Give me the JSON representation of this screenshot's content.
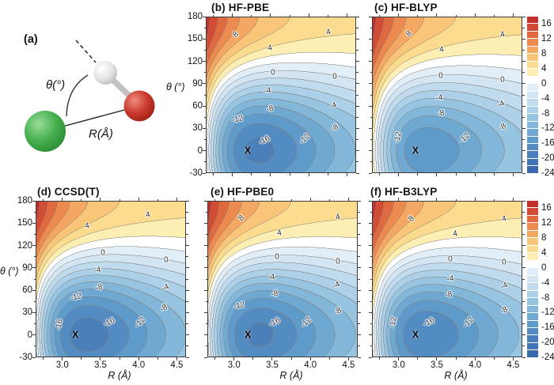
{
  "figure": {
    "background": "#ffffff",
    "panel_a": {
      "label": "(a)",
      "theta_label": "θ(°)",
      "r_label": "R(Å)",
      "atoms": [
        {
          "name": "green-atom",
          "color": "#44b04e"
        },
        {
          "name": "red-atom",
          "color": "#c43a2d"
        },
        {
          "name": "white-atom",
          "color": "#e6e6e6"
        }
      ]
    }
  },
  "chart_data": {
    "type": "contour",
    "x_label": "R (Å)",
    "y_label": "θ (°)",
    "x_range": [
      2.65,
      4.62
    ],
    "y_range": [
      -30,
      180
    ],
    "x_ticks": [
      {
        "v": 3.0,
        "t": "3.0"
      },
      {
        "v": 3.5,
        "t": "3.5"
      },
      {
        "v": 4.0,
        "t": "4.0"
      },
      {
        "v": 4.5,
        "t": "4.5"
      }
    ],
    "x_minor_ticks": [
      2.75,
      3.25,
      3.75,
      4.25
    ],
    "y_ticks": [
      {
        "v": 180,
        "t": "180"
      },
      {
        "v": 150,
        "t": "150"
      },
      {
        "v": 120,
        "t": "120"
      },
      {
        "v": 90,
        "t": "90"
      },
      {
        "v": 60,
        "t": "60"
      },
      {
        "v": 30,
        "t": "30"
      },
      {
        "v": 0,
        "t": "0"
      },
      {
        "v": -30,
        "t": "-30"
      }
    ],
    "y_minor_ticks": [
      165,
      135,
      105,
      75,
      45,
      15,
      -15
    ],
    "contour_interval": 2,
    "labeled_levels": [
      8,
      4,
      0,
      -4,
      -8,
      -12,
      -16
    ],
    "colorbar": {
      "vmin": -24,
      "vmax": 18,
      "ticks": [
        "16",
        "12",
        "8",
        "4",
        "0",
        "-4",
        "-8",
        "-12",
        "-16",
        "-20",
        "-24"
      ],
      "tick_values": [
        16,
        12,
        8,
        4,
        0,
        -4,
        -8,
        -12,
        -16,
        -20,
        -24
      ],
      "band_colors": [
        "#3b68aa",
        "#4273b2",
        "#4a7fba",
        "#538cc2",
        "#5f9bca",
        "#6fa9d2",
        "#82b7da",
        "#97c4e1",
        "#abd0e8",
        "#c0dbee",
        "#d3e5f2",
        "#e2eef7",
        "#ffffff",
        "#fdeeb3",
        "#fbdc8e",
        "#f9c578",
        "#f4a763",
        "#ec8a4f",
        "#e06a40",
        "#d24b35",
        "#c4302b"
      ]
    },
    "panels": [
      {
        "id": "b",
        "title": "(b) HF-PBE",
        "min_energy": -18.2,
        "r_min": 3.2,
        "theta_min": 0,
        "marker": "X",
        "y_tick_labels": true,
        "x_tick_labels": false,
        "clabels": [
          {
            "t": "8",
            "r": 3.04,
            "th": 156,
            "rot": -42
          },
          {
            "t": "4",
            "r": 3.49,
            "th": 138,
            "rot": -8
          },
          {
            "t": "4",
            "r": 4.26,
            "th": 159,
            "rot": -16
          },
          {
            "t": "0",
            "r": 3.53,
            "th": 105,
            "rot": -5
          },
          {
            "t": "0",
            "r": 4.34,
            "th": 99,
            "rot": -6
          },
          {
            "t": "-4",
            "r": 3.46,
            "th": 80,
            "rot": -8
          },
          {
            "t": "-4",
            "r": 4.32,
            "th": 60,
            "rot": -24
          },
          {
            "t": "-8",
            "r": 3.49,
            "th": 56,
            "rot": -10
          },
          {
            "t": "-8",
            "r": 4.34,
            "th": 30,
            "rot": -32
          },
          {
            "t": "-12",
            "r": 3.06,
            "th": 42,
            "rot": -12
          },
          {
            "t": "-12",
            "r": 3.95,
            "th": 16,
            "rot": -44
          },
          {
            "t": "-16",
            "r": 3.42,
            "th": 14,
            "rot": -26
          }
        ]
      },
      {
        "id": "c",
        "title": "(c) HF-BLYP",
        "min_energy": -15.2,
        "r_min": 3.22,
        "theta_min": 0,
        "marker": "X",
        "y_tick_labels": false,
        "x_tick_labels": false,
        "clabels": [
          {
            "t": "8",
            "r": 3.14,
            "th": 157,
            "rot": -42
          },
          {
            "t": "4",
            "r": 3.56,
            "th": 135,
            "rot": -8
          },
          {
            "t": "4",
            "r": 4.36,
            "th": 156,
            "rot": -16
          },
          {
            "t": "0",
            "r": 3.55,
            "th": 100,
            "rot": -5
          },
          {
            "t": "0",
            "r": 4.36,
            "th": 95,
            "rot": -6
          },
          {
            "t": "-4",
            "r": 3.53,
            "th": 71,
            "rot": -8
          },
          {
            "t": "-4",
            "r": 4.34,
            "th": 62,
            "rot": -24
          },
          {
            "t": "-8",
            "r": 3.55,
            "th": 50,
            "rot": -10
          },
          {
            "t": "-8",
            "r": 4.36,
            "th": 31,
            "rot": -32
          },
          {
            "t": "-12",
            "r": 2.99,
            "th": 18,
            "rot": -80
          },
          {
            "t": "-12",
            "r": 3.86,
            "th": 17,
            "rot": -44
          }
        ]
      },
      {
        "id": "d",
        "title": "(d) CCSD(T)",
        "min_energy": -18.8,
        "r_min": 3.17,
        "theta_min": 0,
        "marker": "X",
        "y_tick_labels": true,
        "x_tick_labels": true,
        "clabels": [
          {
            "t": "4",
            "r": 3.32,
            "th": 146,
            "rot": -8
          },
          {
            "t": "4",
            "r": 4.12,
            "th": 161,
            "rot": -14
          },
          {
            "t": "0",
            "r": 3.53,
            "th": 110,
            "rot": -5
          },
          {
            "t": "0",
            "r": 4.36,
            "th": 100,
            "rot": -6
          },
          {
            "t": "-4",
            "r": 3.46,
            "th": 87,
            "rot": -8
          },
          {
            "t": "-4",
            "r": 4.35,
            "th": 63,
            "rot": -24
          },
          {
            "t": "-8",
            "r": 3.48,
            "th": 63,
            "rot": -10
          },
          {
            "t": "-8",
            "r": 4.33,
            "th": 36,
            "rot": -32
          },
          {
            "t": "-12",
            "r": 3.18,
            "th": 51,
            "rot": -12
          },
          {
            "t": "-12",
            "r": 4.02,
            "th": 17,
            "rot": -46
          },
          {
            "t": "-16",
            "r": 2.96,
            "th": 13,
            "rot": -80
          },
          {
            "t": "-16",
            "r": 3.61,
            "th": 17,
            "rot": -24
          }
        ]
      },
      {
        "id": "e",
        "title": "(e) HF-PBE0",
        "min_energy": -18.2,
        "r_min": 3.18,
        "theta_min": 0,
        "marker": "X",
        "y_tick_labels": false,
        "x_tick_labels": true,
        "clabels": [
          {
            "t": "8",
            "r": 3.1,
            "th": 157,
            "rot": -42
          },
          {
            "t": "4",
            "r": 3.59,
            "th": 137,
            "rot": -8
          },
          {
            "t": "4",
            "r": 4.36,
            "th": 158,
            "rot": -16
          },
          {
            "t": "0",
            "r": 3.56,
            "th": 105,
            "rot": -5
          },
          {
            "t": "0",
            "r": 4.36,
            "th": 98,
            "rot": -6
          },
          {
            "t": "-4",
            "r": 3.49,
            "th": 77,
            "rot": -8
          },
          {
            "t": "-4",
            "r": 4.34,
            "th": 66,
            "rot": -24
          },
          {
            "t": "-8",
            "r": 3.53,
            "th": 55,
            "rot": -10
          },
          {
            "t": "-8",
            "r": 4.36,
            "th": 31,
            "rot": -32
          },
          {
            "t": "-12",
            "r": 3.06,
            "th": 39,
            "rot": -12
          },
          {
            "t": "-12",
            "r": 3.95,
            "th": 17,
            "rot": -44
          },
          {
            "t": "-16",
            "r": 3.53,
            "th": 17,
            "rot": -26
          }
        ]
      },
      {
        "id": "f",
        "title": "(f) HF-B3LYP",
        "min_energy": -17.5,
        "r_min": 3.22,
        "theta_min": 0,
        "marker": "X",
        "y_tick_labels": false,
        "x_tick_labels": true,
        "clabels": [
          {
            "t": "8",
            "r": 3.17,
            "th": 156,
            "rot": -42
          },
          {
            "t": "4",
            "r": 3.74,
            "th": 135,
            "rot": -8
          },
          {
            "t": "4",
            "r": 4.38,
            "th": 156,
            "rot": -14
          },
          {
            "t": "0",
            "r": 3.68,
            "th": 102,
            "rot": -5
          },
          {
            "t": "0",
            "r": 4.38,
            "th": 97,
            "rot": -6
          },
          {
            "t": "-4",
            "r": 3.68,
            "th": 75,
            "rot": -8
          },
          {
            "t": "-4",
            "r": 4.38,
            "th": 65,
            "rot": -24
          },
          {
            "t": "-8",
            "r": 3.66,
            "th": 54,
            "rot": -10
          },
          {
            "t": "-8",
            "r": 4.38,
            "th": 33,
            "rot": -32
          },
          {
            "t": "-12",
            "r": 2.93,
            "th": 17,
            "rot": -80
          },
          {
            "t": "-12",
            "r": 3.91,
            "th": 17,
            "rot": -44
          },
          {
            "t": "-16",
            "r": 3.4,
            "th": 17,
            "rot": -26
          }
        ]
      }
    ]
  }
}
